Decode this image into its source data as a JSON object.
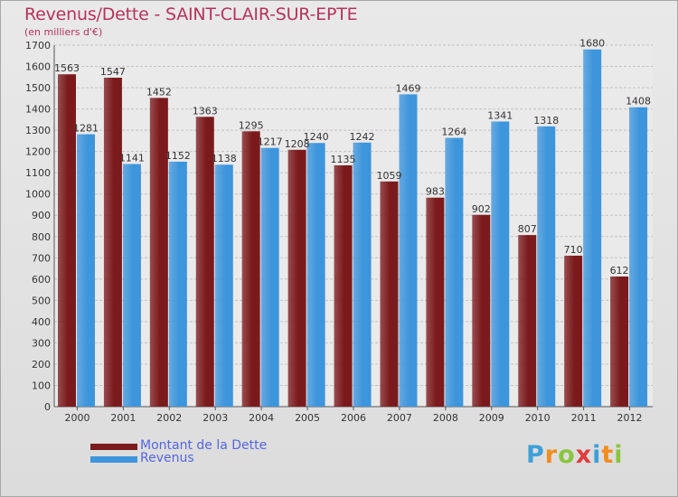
{
  "title": "Revenus/Dette - SAINT-CLAIR-SUR-EPTE",
  "subtitle": "(en milliers d'€)",
  "logo": {
    "letters": [
      {
        "char": "P",
        "color": "#3fa0d8"
      },
      {
        "char": "r",
        "color": "#f28c1e"
      },
      {
        "char": "o",
        "color": "#8bc53f"
      },
      {
        "char": "x",
        "color": "#e23b3b"
      },
      {
        "char": "i",
        "color": "#3fa0d8"
      },
      {
        "char": "t",
        "color": "#f28c1e"
      },
      {
        "char": "i",
        "color": "#8bc53f"
      }
    ]
  },
  "chart_data": {
    "type": "bar",
    "categories": [
      "2000",
      "2001",
      "2002",
      "2003",
      "2004",
      "2005",
      "2006",
      "2007",
      "2008",
      "2009",
      "2010",
      "2011",
      "2012"
    ],
    "series": [
      {
        "name": "Montant de la Dette",
        "color": "#7b1a1c",
        "values": [
          1563,
          1547,
          1452,
          1363,
          1295,
          1208,
          1135,
          1059,
          983,
          902,
          807,
          710,
          612
        ]
      },
      {
        "name": "Revenus",
        "color": "#3d95dc",
        "values": [
          1281,
          1141,
          1152,
          1138,
          1217,
          1240,
          1242,
          1469,
          1264,
          1341,
          1318,
          1680,
          1408
        ]
      }
    ],
    "ylim": [
      0,
      1700
    ],
    "ytick_step": 100,
    "grid": true,
    "legend": "bottom-left"
  }
}
